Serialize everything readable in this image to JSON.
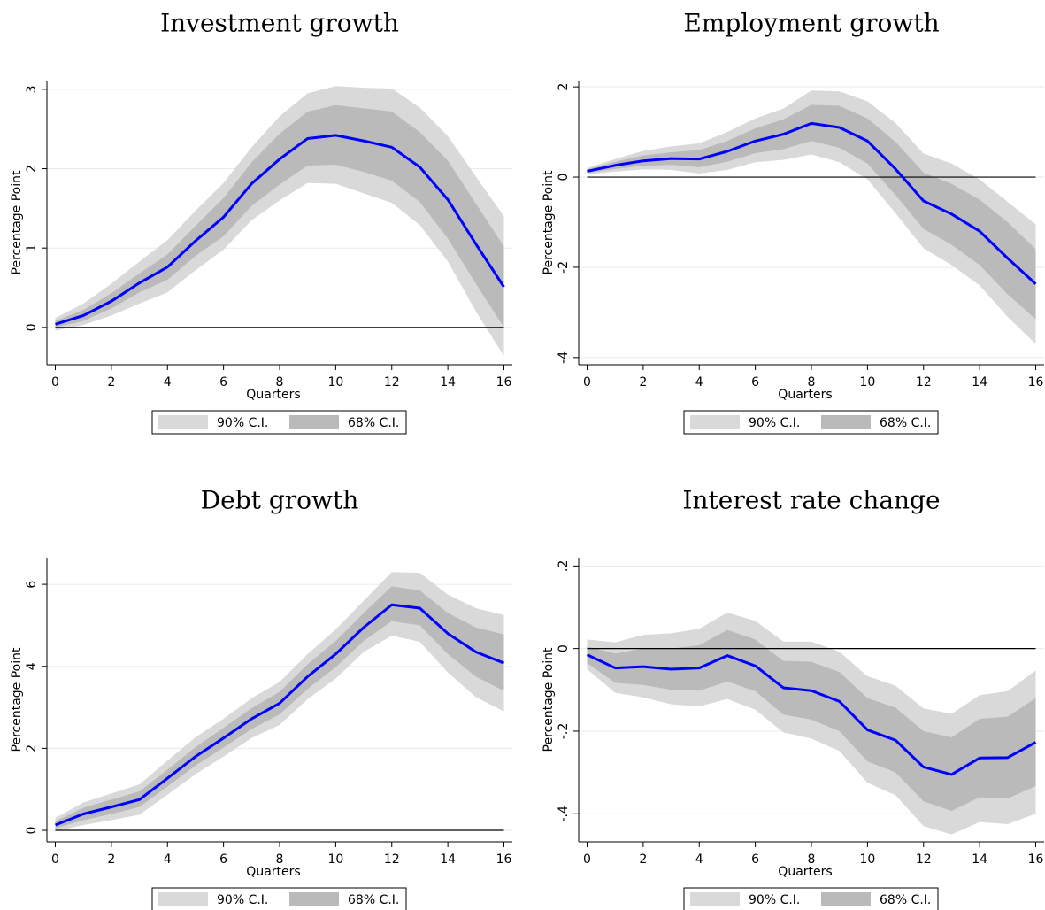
{
  "chart_data": [
    {
      "type": "line",
      "title": "Investment growth",
      "xlabel": "Quarters",
      "ylabel": "Percentage Point",
      "x": [
        0,
        1,
        2,
        3,
        4,
        5,
        6,
        7,
        8,
        9,
        10,
        11,
        12,
        13,
        14,
        15,
        16
      ],
      "values": [
        0.04,
        0.15,
        0.33,
        0.56,
        0.76,
        1.09,
        1.39,
        1.81,
        2.12,
        2.38,
        2.42,
        2.35,
        2.27,
        2.02,
        1.61,
        1.05,
        0.51
      ],
      "color": "#0000ff",
      "bands": [
        {
          "name": "90% C.I.",
          "color": "#d9d9d9",
          "lower": [
            -0.04,
            0.03,
            0.15,
            0.3,
            0.44,
            0.72,
            0.98,
            1.35,
            1.6,
            1.82,
            1.81,
            1.69,
            1.57,
            1.29,
            0.83,
            0.2,
            -0.36
          ],
          "upper": [
            0.12,
            0.3,
            0.55,
            0.83,
            1.1,
            1.47,
            1.82,
            2.27,
            2.66,
            2.95,
            3.04,
            3.02,
            3.01,
            2.77,
            2.41,
            1.9,
            1.4
          ]
        },
        {
          "name": "68% C.I.",
          "color": "#bababa",
          "lower": [
            0.0,
            0.08,
            0.24,
            0.44,
            0.6,
            0.9,
            1.15,
            1.53,
            1.8,
            2.04,
            2.05,
            1.96,
            1.85,
            1.58,
            1.12,
            0.55,
            0.0
          ],
          "upper": [
            0.08,
            0.22,
            0.43,
            0.68,
            0.92,
            1.28,
            1.63,
            2.08,
            2.44,
            2.72,
            2.8,
            2.76,
            2.72,
            2.46,
            2.1,
            1.56,
            1.02
          ]
        }
      ],
      "refline": 0,
      "xlim": [
        -0.3,
        16.3
      ],
      "ylim": [
        -0.47,
        3.11
      ],
      "xticks": [
        0,
        2,
        4,
        6,
        8,
        10,
        12,
        14,
        16
      ],
      "yticks": [
        0,
        1,
        2,
        3
      ],
      "grid": true
    },
    {
      "type": "line",
      "title": "Employment growth",
      "xlabel": "Quarters",
      "ylabel": "Percentage Point",
      "x": [
        0,
        1,
        2,
        3,
        4,
        5,
        6,
        7,
        8,
        9,
        10,
        11,
        12,
        13,
        14,
        15,
        16
      ],
      "values": [
        0.13,
        0.26,
        0.36,
        0.41,
        0.4,
        0.57,
        0.8,
        0.95,
        1.19,
        1.1,
        0.8,
        0.18,
        -0.53,
        -0.82,
        -1.2,
        -1.8,
        -2.37
      ],
      "color": "#0000ff",
      "bands": [
        {
          "name": "90% C.I.",
          "color": "#d9d9d9",
          "lower": [
            0.06,
            0.12,
            0.17,
            0.16,
            0.08,
            0.16,
            0.33,
            0.38,
            0.5,
            0.33,
            -0.05,
            -0.8,
            -1.58,
            -1.95,
            -2.4,
            -3.1,
            -3.7
          ],
          "upper": [
            0.2,
            0.4,
            0.58,
            0.68,
            0.75,
            1.0,
            1.3,
            1.52,
            1.92,
            1.9,
            1.68,
            1.2,
            0.52,
            0.3,
            -0.05,
            -0.55,
            -1.05
          ]
        },
        {
          "name": "68% C.I.",
          "color": "#bababa",
          "lower": [
            0.09,
            0.18,
            0.25,
            0.27,
            0.22,
            0.34,
            0.53,
            0.62,
            0.8,
            0.65,
            0.3,
            -0.4,
            -1.15,
            -1.5,
            -1.95,
            -2.6,
            -3.15
          ],
          "upper": [
            0.17,
            0.34,
            0.48,
            0.55,
            0.6,
            0.8,
            1.08,
            1.28,
            1.6,
            1.58,
            1.3,
            0.78,
            0.1,
            -0.15,
            -0.5,
            -1.0,
            -1.6
          ]
        }
      ],
      "refline": 0,
      "xlim": [
        -0.3,
        16.3
      ],
      "ylim": [
        -4.16,
        2.14
      ],
      "xticks": [
        0,
        2,
        4,
        6,
        8,
        10,
        12,
        14,
        16
      ],
      "yticks": [
        -4,
        -2,
        0,
        2
      ],
      "grid": true
    },
    {
      "type": "line",
      "title": "Debt growth",
      "xlabel": "Quarters",
      "ylabel": "Percentage Point",
      "x": [
        0,
        1,
        2,
        3,
        4,
        5,
        6,
        7,
        8,
        9,
        10,
        11,
        12,
        13,
        14,
        15,
        16
      ],
      "values": [
        0.13,
        0.4,
        0.57,
        0.75,
        1.27,
        1.8,
        2.25,
        2.72,
        3.1,
        3.75,
        4.3,
        4.95,
        5.5,
        5.42,
        4.8,
        4.35,
        4.08
      ],
      "color": "#0000ff",
      "bands": [
        {
          "name": "90% C.I.",
          "color": "#d9d9d9",
          "lower": [
            -0.02,
            0.13,
            0.25,
            0.38,
            0.87,
            1.37,
            1.8,
            2.25,
            2.57,
            3.2,
            3.7,
            4.35,
            4.75,
            4.6,
            3.85,
            3.25,
            2.9
          ],
          "upper": [
            0.3,
            0.68,
            0.9,
            1.12,
            1.7,
            2.27,
            2.72,
            3.22,
            3.62,
            4.3,
            4.9,
            5.6,
            6.3,
            6.28,
            5.75,
            5.42,
            5.25
          ]
        },
        {
          "name": "68% C.I.",
          "color": "#bababa",
          "lower": [
            0.05,
            0.25,
            0.4,
            0.57,
            1.07,
            1.58,
            2.02,
            2.47,
            2.83,
            3.45,
            3.98,
            4.62,
            5.1,
            5.0,
            4.3,
            3.75,
            3.4
          ],
          "upper": [
            0.22,
            0.55,
            0.75,
            0.95,
            1.48,
            2.03,
            2.5,
            2.98,
            3.38,
            4.05,
            4.62,
            5.3,
            5.95,
            5.85,
            5.3,
            4.95,
            4.78
          ]
        }
      ],
      "refline": 0,
      "xlim": [
        -0.3,
        16.3
      ],
      "ylim": [
        -0.28,
        6.65
      ],
      "xticks": [
        0,
        2,
        4,
        6,
        8,
        10,
        12,
        14,
        16
      ],
      "yticks": [
        0,
        2,
        4,
        6
      ],
      "grid": true
    },
    {
      "type": "line",
      "title": "Interest rate change",
      "xlabel": "Quarters",
      "ylabel": "Percentage Point",
      "x": [
        0,
        1,
        2,
        3,
        4,
        5,
        6,
        7,
        8,
        9,
        10,
        11,
        12,
        13,
        14,
        15,
        16
      ],
      "values": [
        -0.015,
        -0.047,
        -0.044,
        -0.05,
        -0.047,
        -0.017,
        -0.042,
        -0.095,
        -0.102,
        -0.128,
        -0.197,
        -0.222,
        -0.287,
        -0.305,
        -0.265,
        -0.264,
        -0.227
      ],
      "color": "#0000ff",
      "bands": [
        {
          "name": "90% C.I.",
          "color": "#d9d9d9",
          "lower": [
            -0.05,
            -0.107,
            -0.118,
            -0.135,
            -0.14,
            -0.122,
            -0.148,
            -0.203,
            -0.218,
            -0.248,
            -0.325,
            -0.355,
            -0.43,
            -0.45,
            -0.42,
            -0.425,
            -0.4
          ],
          "upper": [
            0.022,
            0.015,
            0.033,
            0.037,
            0.048,
            0.087,
            0.067,
            0.017,
            0.017,
            -0.008,
            -0.067,
            -0.09,
            -0.145,
            -0.158,
            -0.113,
            -0.103,
            -0.053
          ]
        },
        {
          "name": "68% C.I.",
          "color": "#bababa",
          "lower": [
            -0.035,
            -0.083,
            -0.088,
            -0.1,
            -0.102,
            -0.08,
            -0.103,
            -0.16,
            -0.172,
            -0.2,
            -0.273,
            -0.3,
            -0.37,
            -0.393,
            -0.36,
            -0.363,
            -0.333
          ],
          "upper": [
            0.005,
            -0.012,
            0.0,
            0.0,
            0.008,
            0.045,
            0.022,
            -0.03,
            -0.032,
            -0.057,
            -0.12,
            -0.143,
            -0.2,
            -0.215,
            -0.17,
            -0.165,
            -0.12
          ]
        }
      ],
      "refline": 0,
      "xlim": [
        -0.3,
        16.3
      ],
      "ylim": [
        -0.468,
        0.22
      ],
      "xticks": [
        0,
        2,
        4,
        6,
        8,
        10,
        12,
        14,
        16
      ],
      "yticks": [
        {
          "value": -0.4,
          "label": "-.4"
        },
        {
          "value": -0.2,
          "label": "-.2"
        },
        0,
        {
          "value": 0.2,
          "label": ".2"
        }
      ],
      "grid": true
    }
  ]
}
